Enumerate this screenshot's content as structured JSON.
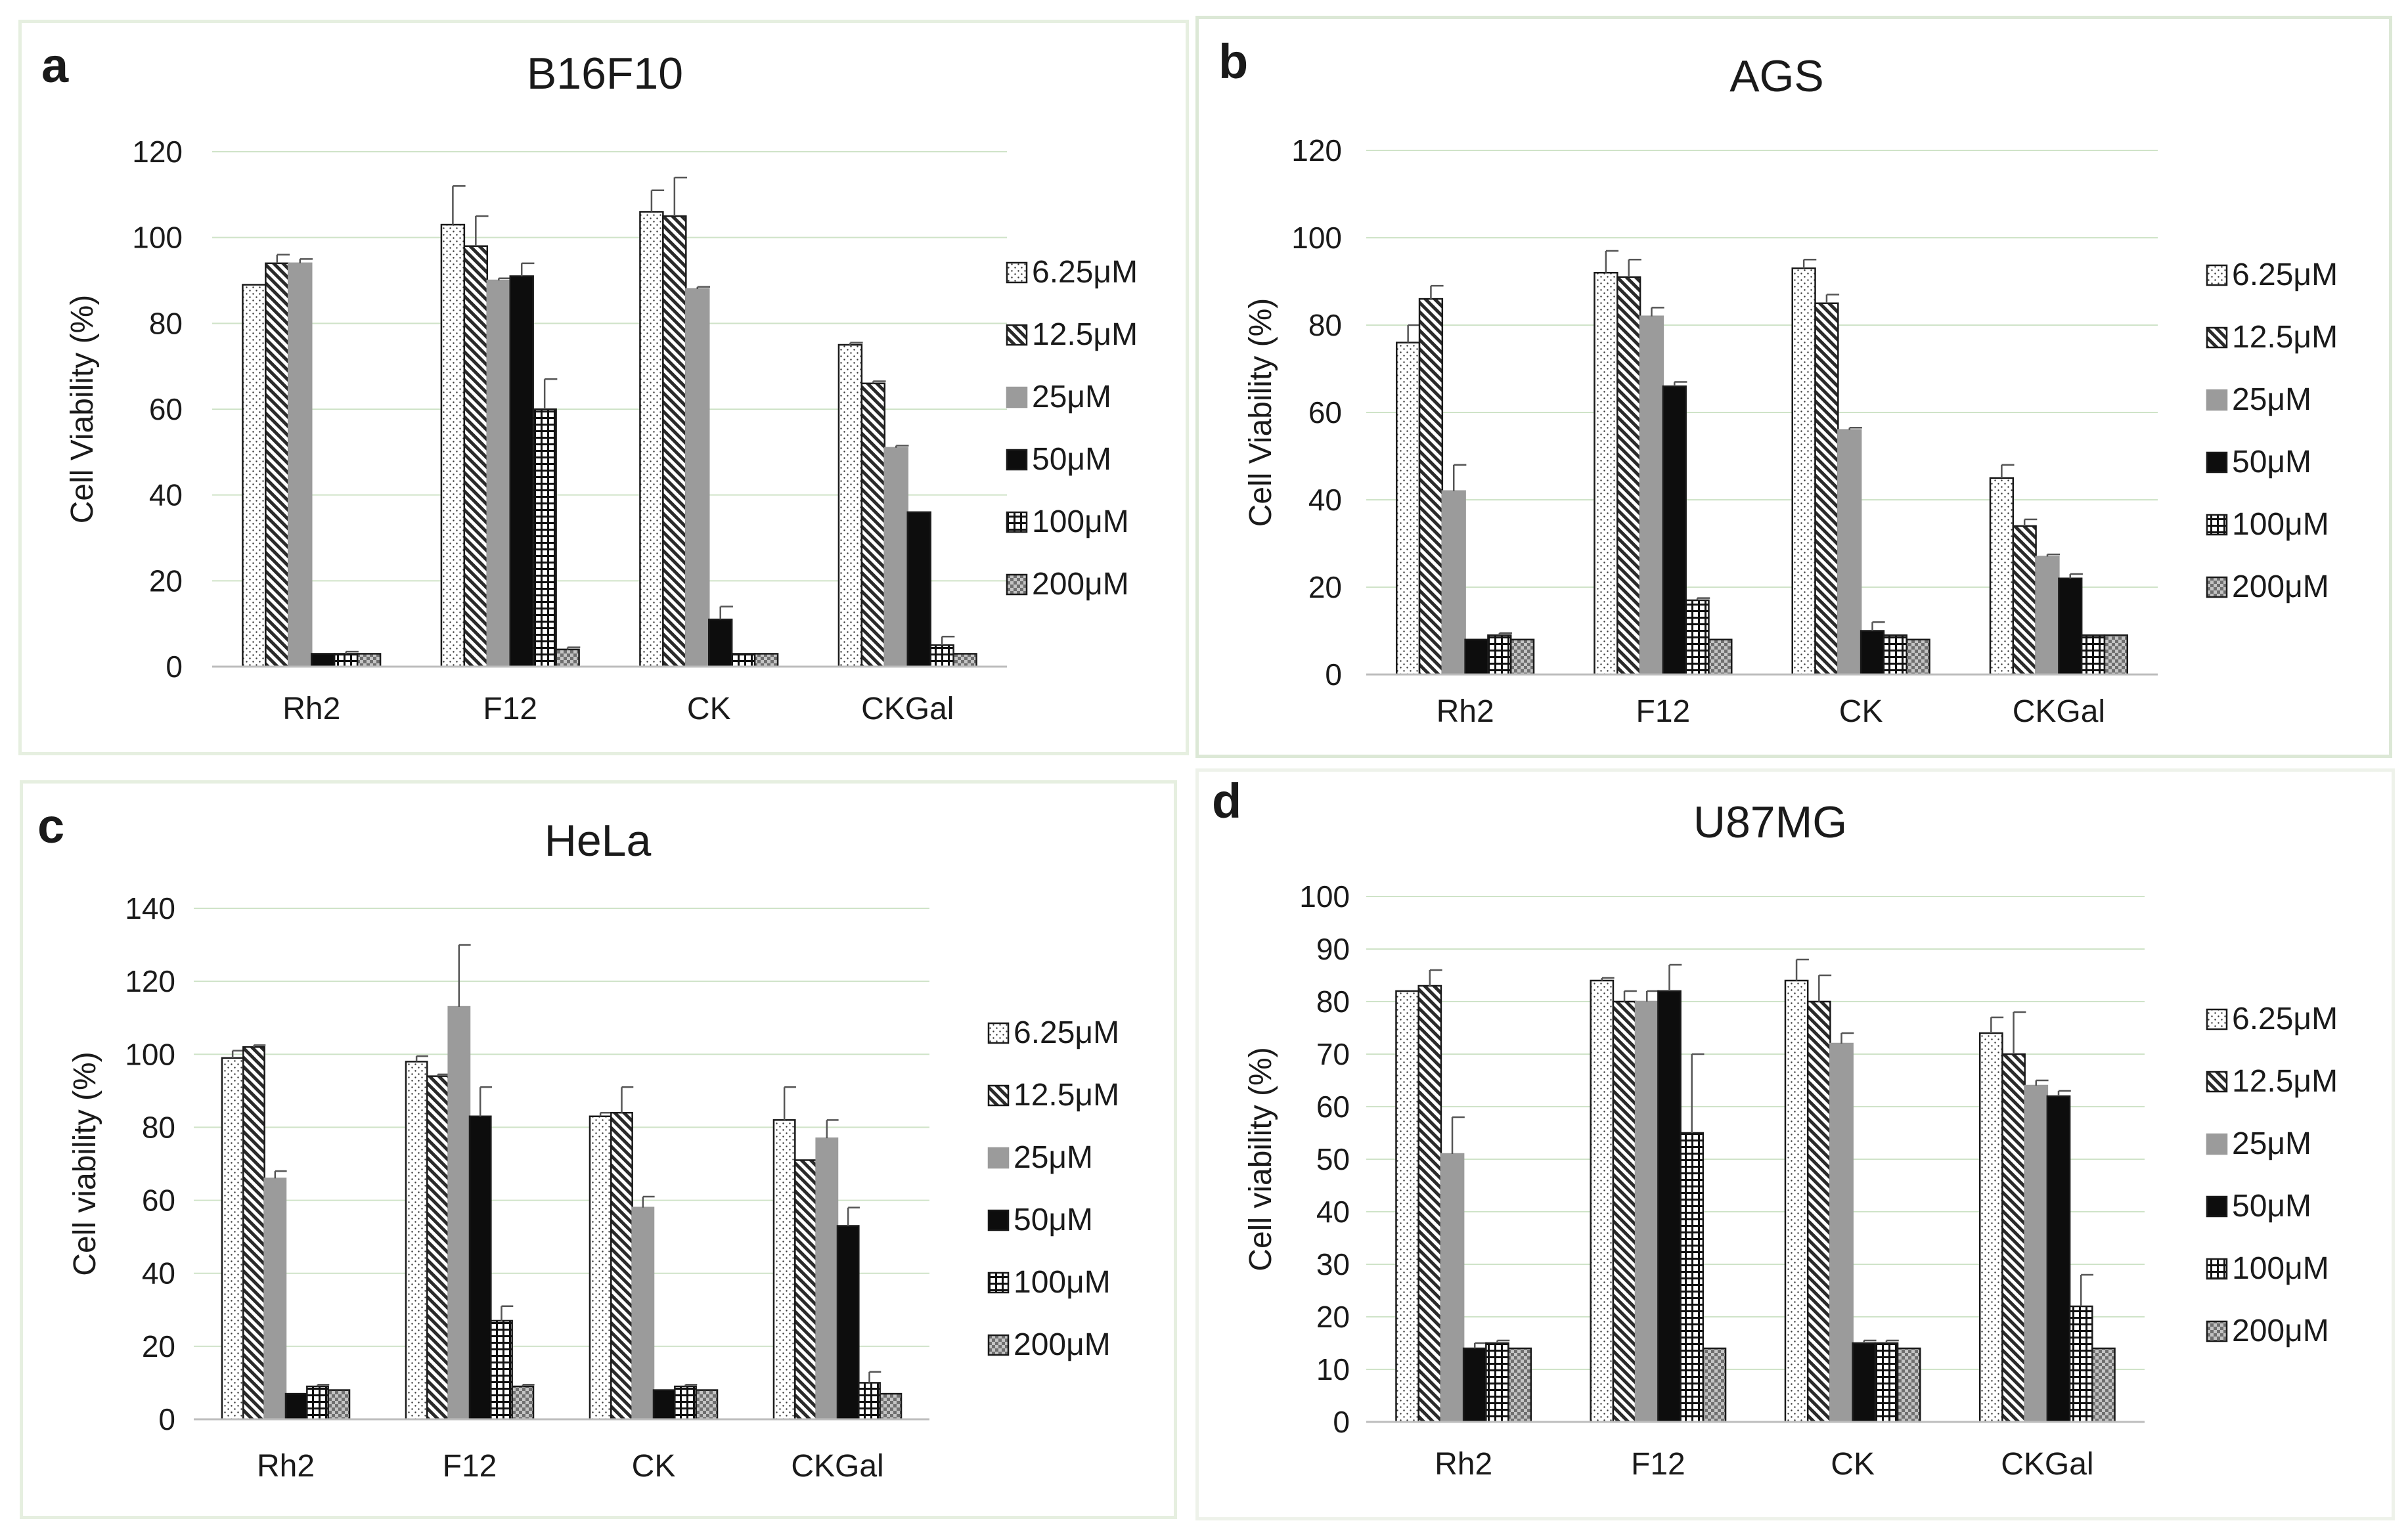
{
  "colors": {
    "grid": "#cfe3c8",
    "axis": "#bdbdbd",
    "text": "#1a1a1a",
    "bar_edge": "#1a1a1a",
    "solid_gray": "#9b9b9b",
    "solid_black": "#0d0d0d",
    "dark_gray": "#7a7a7a"
  },
  "series_styles": [
    "dots-white",
    "hatch-diagonal",
    "solid-gray",
    "solid-black",
    "grid-square",
    "checker-gray"
  ],
  "chart_data": [
    {
      "panel": "a",
      "type": "bar",
      "title": "B16F10",
      "xlabel": "",
      "ylabel": "Cell Viability (%)",
      "ylim": [
        0,
        120
      ],
      "yticks": [
        0,
        20,
        40,
        60,
        80,
        100,
        120
      ],
      "grid": true,
      "legend_position": "right",
      "categories": [
        "Rh2",
        "F12",
        "CK",
        "CKGal"
      ],
      "series": [
        {
          "name": "6.25μM",
          "values": [
            89,
            103,
            106,
            75
          ],
          "errors": [
            0,
            9,
            5,
            0.5
          ]
        },
        {
          "name": "12.5μM",
          "values": [
            94,
            98,
            105,
            66
          ],
          "errors": [
            2,
            7,
            9,
            0.5
          ]
        },
        {
          "name": "25μM",
          "values": [
            94,
            90,
            88,
            51
          ],
          "errors": [
            1,
            0.5,
            0.5,
            0.5
          ]
        },
        {
          "name": "50μM",
          "values": [
            3,
            91,
            11,
            36
          ],
          "errors": [
            0,
            3,
            3,
            0
          ]
        },
        {
          "name": "100μM",
          "values": [
            3,
            60,
            3,
            5
          ],
          "errors": [
            0.5,
            7,
            0,
            2
          ]
        },
        {
          "name": "200μM",
          "values": [
            3,
            4,
            3,
            3
          ],
          "errors": [
            0,
            0.5,
            0,
            0
          ]
        }
      ]
    },
    {
      "panel": "b",
      "type": "bar",
      "title": "AGS",
      "xlabel": "",
      "ylabel": "Cell Viability (%)",
      "ylim": [
        0,
        120
      ],
      "yticks": [
        0,
        20,
        40,
        60,
        80,
        100,
        120
      ],
      "grid": true,
      "legend_position": "right",
      "categories": [
        "Rh2",
        "F12",
        "CK",
        "CKGal"
      ],
      "series": [
        {
          "name": "6.25μM",
          "values": [
            76,
            92,
            93,
            45
          ],
          "errors": [
            4,
            5,
            2,
            3
          ]
        },
        {
          "name": "12.5μM",
          "values": [
            86,
            91,
            85,
            34
          ],
          "errors": [
            3,
            4,
            2,
            1.5
          ]
        },
        {
          "name": "25μM",
          "values": [
            42,
            82,
            56,
            27
          ],
          "errors": [
            6,
            2,
            0.5,
            0.5
          ]
        },
        {
          "name": "50μM",
          "values": [
            8,
            66,
            10,
            22
          ],
          "errors": [
            0,
            1,
            2,
            1
          ]
        },
        {
          "name": "100μM",
          "values": [
            9,
            17,
            9,
            9
          ],
          "errors": [
            0.5,
            0.5,
            0,
            0
          ]
        },
        {
          "name": "200μM",
          "values": [
            8,
            8,
            8,
            9
          ],
          "errors": [
            0,
            0,
            0,
            0
          ]
        }
      ]
    },
    {
      "panel": "c",
      "type": "bar",
      "title": "HeLa",
      "xlabel": "",
      "ylabel": "Cell viability (%)",
      "ylim": [
        0,
        140
      ],
      "yticks": [
        0,
        20,
        40,
        60,
        80,
        100,
        120,
        140
      ],
      "grid": true,
      "legend_position": "right",
      "categories": [
        "Rh2",
        "F12",
        "CK",
        "CKGal"
      ],
      "series": [
        {
          "name": "6.25μM",
          "values": [
            99,
            98,
            83,
            82
          ],
          "errors": [
            2,
            1.5,
            1,
            9
          ]
        },
        {
          "name": "12.5μM",
          "values": [
            102,
            94,
            84,
            71
          ],
          "errors": [
            0.5,
            0.5,
            7,
            0
          ]
        },
        {
          "name": "25μM",
          "values": [
            66,
            113,
            58,
            77
          ],
          "errors": [
            2,
            17,
            3,
            5
          ]
        },
        {
          "name": "50μM",
          "values": [
            7,
            83,
            8,
            53
          ],
          "errors": [
            0,
            8,
            0,
            5
          ]
        },
        {
          "name": "100μM",
          "values": [
            9,
            27,
            9,
            10
          ],
          "errors": [
            0.5,
            4,
            0.5,
            3
          ]
        },
        {
          "name": "200μM",
          "values": [
            8,
            9,
            8,
            7
          ],
          "errors": [
            0,
            0.5,
            0,
            0
          ]
        }
      ]
    },
    {
      "panel": "d",
      "type": "bar",
      "title": "U87MG",
      "xlabel": "",
      "ylabel": "Cell viability (%)",
      "ylim": [
        0,
        100
      ],
      "yticks": [
        0,
        10,
        20,
        30,
        40,
        50,
        60,
        70,
        80,
        90,
        100
      ],
      "grid": true,
      "legend_position": "right",
      "categories": [
        "Rh2",
        "F12",
        "CK",
        "CKGal"
      ],
      "series": [
        {
          "name": "6.25μM",
          "values": [
            82,
            84,
            84,
            74
          ],
          "errors": [
            0,
            0.5,
            4,
            3
          ]
        },
        {
          "name": "12.5μM",
          "values": [
            83,
            80,
            80,
            70
          ],
          "errors": [
            3,
            2,
            5,
            8
          ]
        },
        {
          "name": "25μM",
          "values": [
            51,
            80,
            72,
            64
          ],
          "errors": [
            7,
            2,
            2,
            1
          ]
        },
        {
          "name": "50μM",
          "values": [
            14,
            82,
            15,
            62
          ],
          "errors": [
            1,
            5,
            0.5,
            1
          ]
        },
        {
          "name": "100μM",
          "values": [
            15,
            55,
            15,
            22
          ],
          "errors": [
            0.5,
            15,
            0.5,
            6
          ]
        },
        {
          "name": "200μM",
          "values": [
            14,
            14,
            14,
            14
          ],
          "errors": [
            0,
            0,
            0,
            0
          ]
        }
      ]
    }
  ]
}
